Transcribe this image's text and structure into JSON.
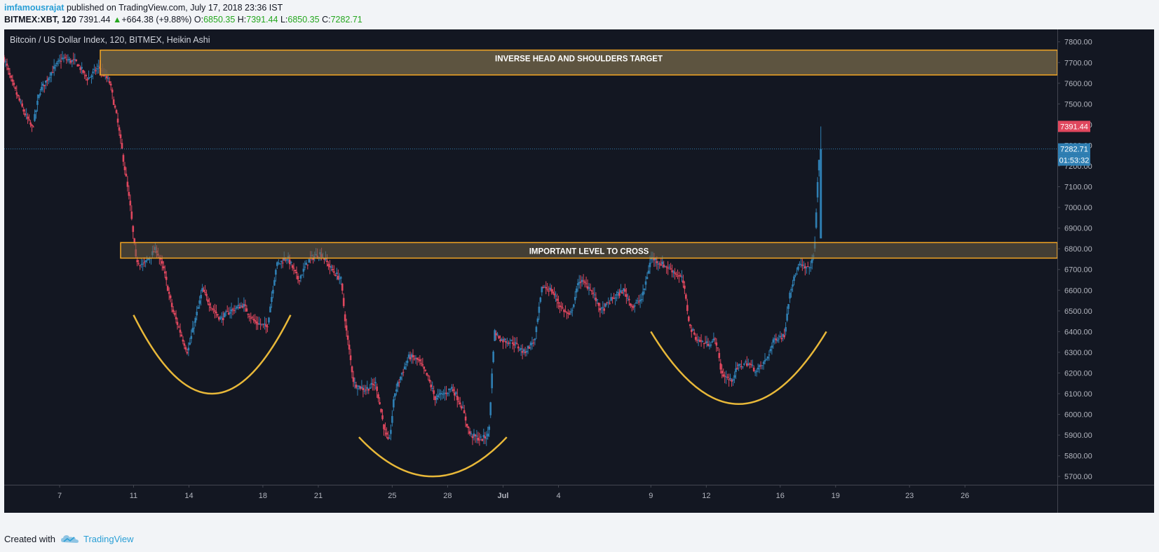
{
  "header": {
    "author": "imfamousrajat",
    "published": "published on TradingView.com, July 17, 2018 23:36 IST",
    "symbol": "BITMEX:XBT, 120",
    "last": "7391.44",
    "change_arrow": "▲",
    "change": "+664.38 (+9.88%)",
    "o_label": "O:",
    "o_value": "6850.35",
    "h_label": "H:",
    "h_value": "7391.44",
    "l_label": "L:",
    "l_value": "6850.35",
    "c_label": "C:",
    "c_value": "7282.71"
  },
  "chart_title": "Bitcoin / US Dollar Index, 120, BITMEX, Heikin Ashi",
  "footer": {
    "created_with": "Created with",
    "brand": "TradingView"
  },
  "colors": {
    "background": "#131722",
    "up": "#2f7fb3",
    "down": "#e0475e",
    "zone_fill": "#6b5f45",
    "zone_border": "#f5a623",
    "curve": "#e8b839",
    "axis_text": "#b2b5be"
  },
  "chart_data": {
    "type": "candlestick",
    "style": "Heikin Ashi",
    "interval": "120",
    "xlim": [
      0,
      57
    ],
    "ylim": [
      5660,
      7860
    ],
    "x_ticks": [
      {
        "x": 3,
        "label": "7"
      },
      {
        "x": 7,
        "label": "11"
      },
      {
        "x": 10,
        "label": "14"
      },
      {
        "x": 14,
        "label": "18"
      },
      {
        "x": 17,
        "label": "21"
      },
      {
        "x": 21,
        "label": "25"
      },
      {
        "x": 24,
        "label": "28"
      },
      {
        "x": 27,
        "label": "Jul"
      },
      {
        "x": 30,
        "label": "4"
      },
      {
        "x": 35,
        "label": "9"
      },
      {
        "x": 38,
        "label": "12"
      },
      {
        "x": 42,
        "label": "16"
      },
      {
        "x": 45,
        "label": "19"
      },
      {
        "x": 49,
        "label": "23"
      },
      {
        "x": 52,
        "label": "26"
      }
    ],
    "y_ticks": [
      5700,
      5800,
      5900,
      6000,
      6100,
      6200,
      6300,
      6400,
      6500,
      6600,
      6700,
      6800,
      6900,
      7000,
      7100,
      7200,
      7300,
      7400,
      7500,
      7600,
      7700,
      7800
    ],
    "price_path": [
      [
        0,
        7740
      ],
      [
        0.5,
        7600
      ],
      [
        1.2,
        7450
      ],
      [
        1.6,
        7380
      ],
      [
        2,
        7560
      ],
      [
        2.6,
        7650
      ],
      [
        3.2,
        7720
      ],
      [
        4,
        7700
      ],
      [
        4.6,
        7620
      ],
      [
        5.2,
        7680
      ],
      [
        5.8,
        7600
      ],
      [
        6.2,
        7420
      ],
      [
        6.5,
        7250
      ],
      [
        6.9,
        7000
      ],
      [
        7.2,
        6750
      ],
      [
        7.6,
        6720
      ],
      [
        8.3,
        6800
      ],
      [
        8.7,
        6700
      ],
      [
        9.2,
        6500
      ],
      [
        9.6,
        6400
      ],
      [
        10.0,
        6300
      ],
      [
        10.4,
        6450
      ],
      [
        10.8,
        6600
      ],
      [
        11.3,
        6520
      ],
      [
        11.8,
        6460
      ],
      [
        12.3,
        6500
      ],
      [
        13,
        6530
      ],
      [
        13.6,
        6450
      ],
      [
        14.3,
        6420
      ],
      [
        14.8,
        6720
      ],
      [
        15.4,
        6760
      ],
      [
        16,
        6650
      ],
      [
        16.6,
        6750
      ],
      [
        17.2,
        6780
      ],
      [
        17.8,
        6700
      ],
      [
        18.3,
        6650
      ],
      [
        18.6,
        6400
      ],
      [
        19,
        6150
      ],
      [
        19.6,
        6120
      ],
      [
        20.2,
        6150
      ],
      [
        20.6,
        5950
      ],
      [
        20.9,
        5850
      ],
      [
        21.2,
        6100
      ],
      [
        21.6,
        6200
      ],
      [
        22,
        6280
      ],
      [
        22.5,
        6260
      ],
      [
        23,
        6180
      ],
      [
        23.4,
        6080
      ],
      [
        23.9,
        6100
      ],
      [
        24.3,
        6130
      ],
      [
        24.8,
        6050
      ],
      [
        25.3,
        5900
      ],
      [
        25.9,
        5880
      ],
      [
        26.3,
        5900
      ],
      [
        26.6,
        6400
      ],
      [
        27,
        6360
      ],
      [
        27.6,
        6350
      ],
      [
        28.2,
        6300
      ],
      [
        28.8,
        6360
      ],
      [
        29.2,
        6620
      ],
      [
        29.7,
        6600
      ],
      [
        30.2,
        6520
      ],
      [
        30.7,
        6470
      ],
      [
        31.2,
        6650
      ],
      [
        31.8,
        6610
      ],
      [
        32.4,
        6500
      ],
      [
        33,
        6560
      ],
      [
        33.6,
        6600
      ],
      [
        34.1,
        6520
      ],
      [
        34.6,
        6560
      ],
      [
        35.1,
        6760
      ],
      [
        35.6,
        6730
      ],
      [
        36.2,
        6700
      ],
      [
        36.8,
        6650
      ],
      [
        37.2,
        6420
      ],
      [
        37.6,
        6360
      ],
      [
        38.1,
        6340
      ],
      [
        38.6,
        6360
      ],
      [
        38.9,
        6200
      ],
      [
        39.4,
        6160
      ],
      [
        39.8,
        6230
      ],
      [
        40.3,
        6250
      ],
      [
        40.8,
        6210
      ],
      [
        41.3,
        6260
      ],
      [
        41.8,
        6370
      ],
      [
        42.3,
        6380
      ],
      [
        42.6,
        6600
      ],
      [
        43.1,
        6720
      ],
      [
        43.6,
        6700
      ],
      [
        43.9,
        6760
      ],
      [
        44.2,
        7282.71
      ]
    ],
    "last_bar": {
      "x": 44.2,
      "open": 6850.35,
      "high": 7391.44,
      "low": 6850.35,
      "close": 7282.71
    },
    "zones": [
      {
        "label": "INVERSE HEAD AND SHOULDERS TARGET",
        "x_start": 5.2,
        "y_low": 7640,
        "y_high": 7760
      },
      {
        "label": "IMPORTANT LEVEL TO CROSS",
        "x_start": 6.3,
        "y_low": 6755,
        "y_high": 6830
      }
    ],
    "curves": [
      {
        "x0": 7,
        "x1": 15.5,
        "y_top": 6480,
        "y_bottom": 6100
      },
      {
        "x0": 19.2,
        "x1": 27.2,
        "y_top": 5890,
        "y_bottom": 5700
      },
      {
        "x0": 35,
        "x1": 44.5,
        "y_top": 6400,
        "y_bottom": 6050
      }
    ],
    "last_price_line": 7282.71,
    "price_labels": [
      {
        "value": 7391.44,
        "label": "7391.44",
        "color": "#e0475e"
      },
      {
        "value": 7282.71,
        "label": "7282.71",
        "color": "#2f7fb3"
      }
    ],
    "countdown": "01:53:32"
  }
}
